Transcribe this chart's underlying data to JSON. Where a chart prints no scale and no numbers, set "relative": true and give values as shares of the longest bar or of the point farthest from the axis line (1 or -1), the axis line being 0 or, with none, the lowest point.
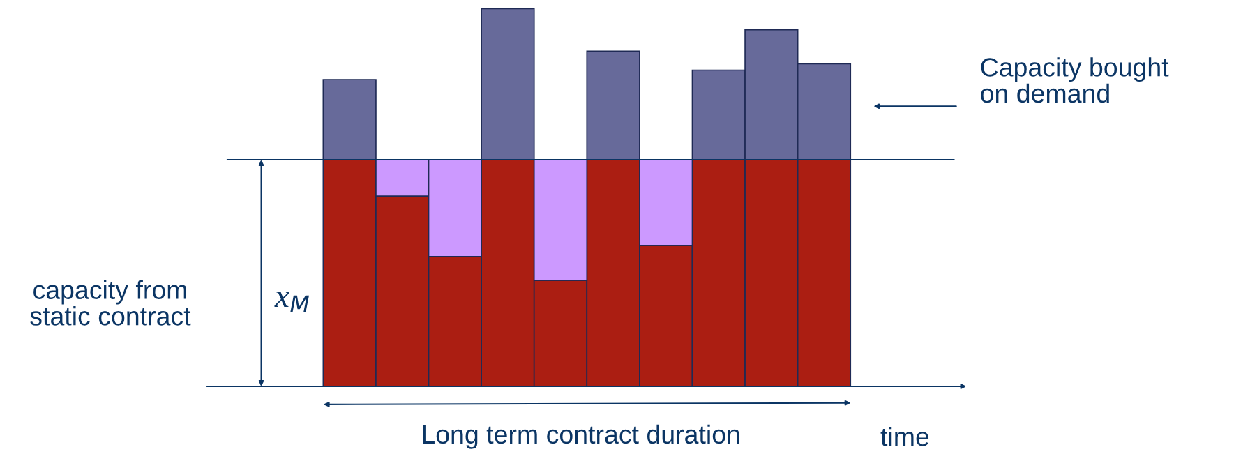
{
  "chart_data": {
    "type": "bar",
    "stacked": true,
    "relative": true,
    "categories": [
      null,
      null,
      null,
      null,
      null,
      null,
      null,
      null,
      null,
      null
    ],
    "series": [
      {
        "color": "#ab1e12",
        "values": [
          0.6,
          0.504,
          0.344,
          0.6,
          0.281,
          0.6,
          0.373,
          0.6,
          0.6,
          0.6
        ]
      },
      {
        "color": "#cc99ff",
        "values": [
          0,
          0.096,
          0.256,
          0,
          0.319,
          0,
          0.227,
          0,
          0,
          0
        ]
      },
      {
        "color": "#676a9a",
        "values": [
          0.2125,
          0,
          0,
          0.4,
          0,
          0.2875,
          0,
          0.2375,
          0.344,
          0.254
        ]
      }
    ],
    "ref_lines": [
      {
        "axis": "y",
        "value": 0.6,
        "color": "#0b3564"
      }
    ],
    "annotations": [
      "Capacity bought\non demand",
      "capacity from\nstatic contract",
      "x$_{M}$",
      "Long term contract duration",
      "time"
    ],
    "legend": false
  }
}
